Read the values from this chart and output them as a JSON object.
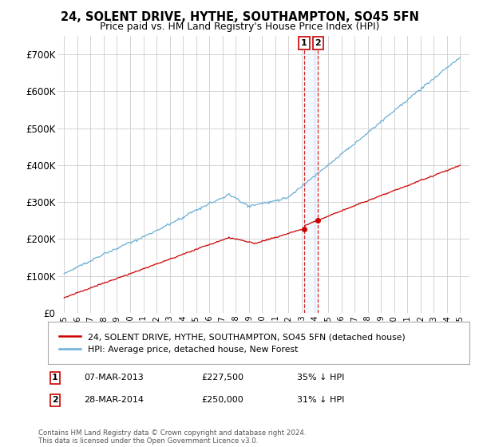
{
  "title": "24, SOLENT DRIVE, HYTHE, SOUTHAMPTON, SO45 5FN",
  "subtitle": "Price paid vs. HM Land Registry's House Price Index (HPI)",
  "ylim": [
    0,
    750000
  ],
  "yticks": [
    0,
    100000,
    200000,
    300000,
    400000,
    500000,
    600000,
    700000
  ],
  "ytick_labels": [
    "£0",
    "£100K",
    "£200K",
    "£300K",
    "£400K",
    "£500K",
    "£600K",
    "£700K"
  ],
  "hpi_color": "#6baed6",
  "price_color": "#cc0000",
  "vline_color": "#cc0000",
  "shade_color": "#ddeeff",
  "transaction1_year": 2013.18,
  "transaction1_price": 227500,
  "transaction1_date": "07-MAR-2013",
  "transaction1_hpi_pct": "35% ↓ HPI",
  "transaction2_year": 2014.23,
  "transaction2_price": 250000,
  "transaction2_date": "28-MAR-2014",
  "transaction2_hpi_pct": "31% ↓ HPI",
  "legend_label1": "24, SOLENT DRIVE, HYTHE, SOUTHAMPTON, SO45 5FN (detached house)",
  "legend_label2": "HPI: Average price, detached house, New Forest",
  "footer": "Contains HM Land Registry data © Crown copyright and database right 2024.\nThis data is licensed under the Open Government Licence v3.0.",
  "bg_color": "#ffffff",
  "grid_color": "#cccccc"
}
